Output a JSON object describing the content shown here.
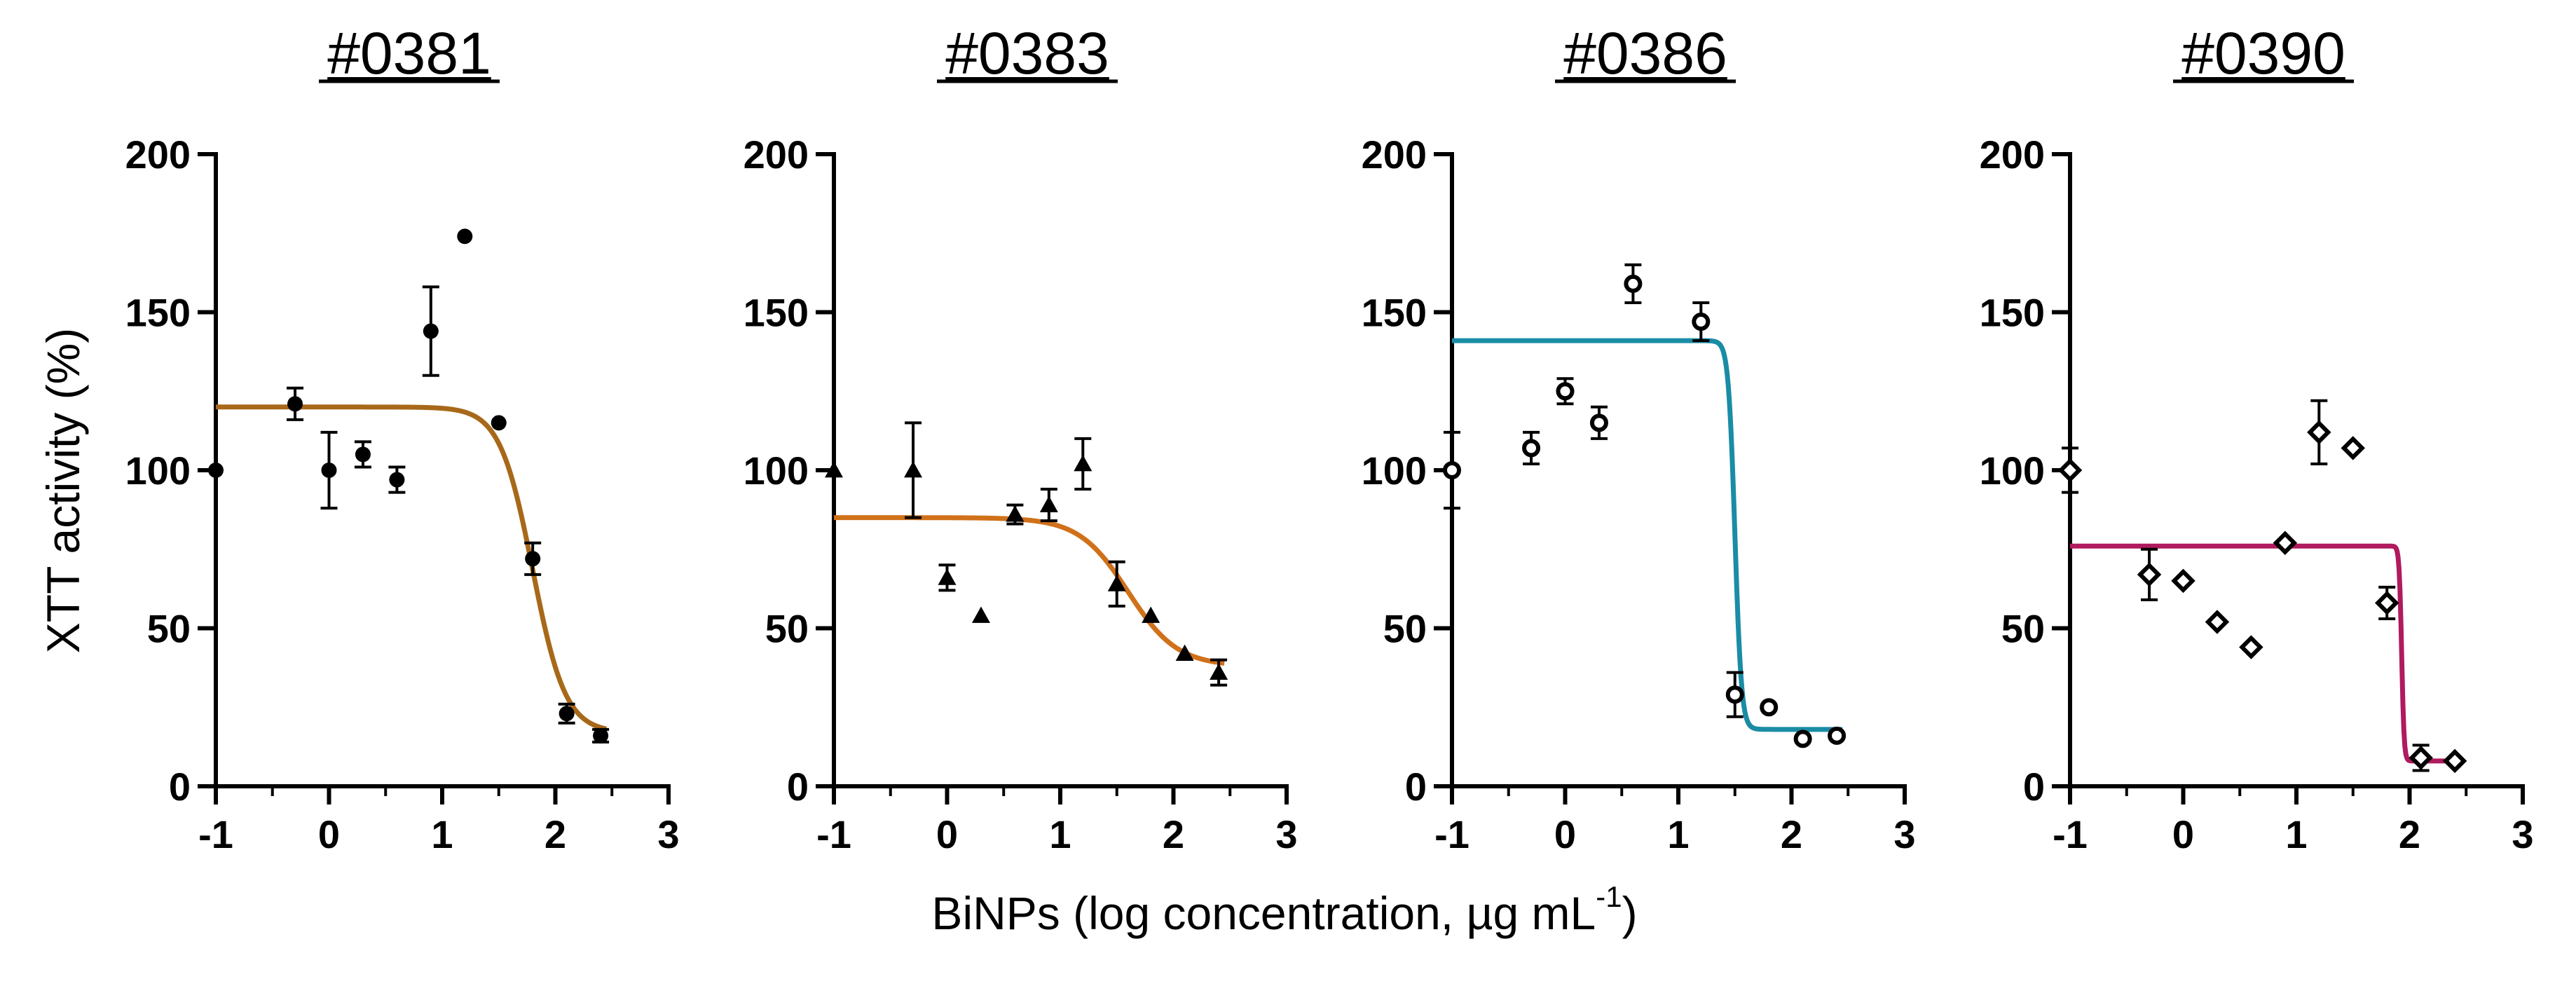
{
  "figure": {
    "y_axis_title": "XTT activity (%)",
    "x_axis_title_main": "BiNPs (log concentration, µg mL",
    "x_axis_title_sup": "-1",
    "x_axis_title_end": ")"
  },
  "chart_data": [
    {
      "type": "scatter",
      "title": "#0381",
      "xlabel": "BiNPs (log concentration, µg mL-1)",
      "ylabel": "XTT activity (%)",
      "xlim": [
        -1,
        3
      ],
      "ylim": [
        0,
        200
      ],
      "xticks": [
        "-1",
        "0",
        "1",
        "2",
        "3"
      ],
      "yticks": [
        "0",
        "50",
        "100",
        "150",
        "200"
      ],
      "marker": "circle",
      "fit_color": "#A8681A",
      "fit": {
        "top": 120,
        "bottom": 17,
        "logEC50": 1.8,
        "hill": 3.0
      },
      "points": [
        {
          "x": -1.0,
          "y": 100,
          "err": 0
        },
        {
          "x": -0.3,
          "y": 121,
          "err": 5
        },
        {
          "x": 0.0,
          "y": 100,
          "err": 12
        },
        {
          "x": 0.3,
          "y": 105,
          "err": 4
        },
        {
          "x": 0.6,
          "y": 97,
          "err": 4
        },
        {
          "x": 0.9,
          "y": 144,
          "err": 14
        },
        {
          "x": 1.2,
          "y": 174,
          "err": 0
        },
        {
          "x": 1.5,
          "y": 115,
          "err": 0
        },
        {
          "x": 1.8,
          "y": 72,
          "err": 5
        },
        {
          "x": 2.1,
          "y": 23,
          "err": 3
        },
        {
          "x": 2.4,
          "y": 16,
          "err": 2
        }
      ]
    },
    {
      "type": "scatter",
      "title": "#0383",
      "xlabel": "BiNPs (log concentration, µg mL-1)",
      "ylabel": "XTT activity (%)",
      "xlim": [
        -1,
        3
      ],
      "ylim": [
        0,
        200
      ],
      "xticks": [
        "-1",
        "0",
        "1",
        "2",
        "3"
      ],
      "yticks": [
        "0",
        "50",
        "100",
        "150",
        "200"
      ],
      "marker": "triangle",
      "fit_color": "#D0711A",
      "fit": {
        "top": 85,
        "bottom": 38,
        "logEC50": 1.6,
        "hill": 2.0
      },
      "points": [
        {
          "x": -1.0,
          "y": 100,
          "err": 0
        },
        {
          "x": -0.3,
          "y": 100,
          "err": 15
        },
        {
          "x": 0.0,
          "y": 66,
          "err": 4
        },
        {
          "x": 0.3,
          "y": 54,
          "err": 0
        },
        {
          "x": 0.6,
          "y": 86,
          "err": 3
        },
        {
          "x": 0.9,
          "y": 89,
          "err": 5
        },
        {
          "x": 1.2,
          "y": 102,
          "err": 8
        },
        {
          "x": 1.5,
          "y": 64,
          "err": 7
        },
        {
          "x": 1.8,
          "y": 54,
          "err": 0
        },
        {
          "x": 2.1,
          "y": 42,
          "err": 0
        },
        {
          "x": 2.4,
          "y": 36,
          "err": 4
        }
      ]
    },
    {
      "type": "scatter",
      "title": "#0386",
      "xlabel": "BiNPs (log concentration, µg mL-1)",
      "ylabel": "XTT activity (%)",
      "xlim": [
        -1,
        3
      ],
      "ylim": [
        0,
        200
      ],
      "xticks": [
        "-1",
        "0",
        "1",
        "2",
        "3"
      ],
      "yticks": [
        "0",
        "50",
        "100",
        "150",
        "200"
      ],
      "marker": "open-circle",
      "fit_color": "#1A8CA5",
      "fit": {
        "top": 141,
        "bottom": 18,
        "logEC50": 1.5,
        "hill": 15
      },
      "points": [
        {
          "x": -1.0,
          "y": 100,
          "err": 12
        },
        {
          "x": -0.3,
          "y": 107,
          "err": 5
        },
        {
          "x": 0.0,
          "y": 125,
          "err": 4
        },
        {
          "x": 0.3,
          "y": 115,
          "err": 5
        },
        {
          "x": 0.6,
          "y": 159,
          "err": 6
        },
        {
          "x": 1.2,
          "y": 147,
          "err": 6
        },
        {
          "x": 1.5,
          "y": 29,
          "err": 7
        },
        {
          "x": 1.8,
          "y": 25,
          "err": 0
        },
        {
          "x": 2.1,
          "y": 15,
          "err": 0
        },
        {
          "x": 2.4,
          "y": 16,
          "err": 0
        }
      ]
    },
    {
      "type": "scatter",
      "title": "#0390",
      "xlabel": "BiNPs (log concentration, µg mL-1)",
      "ylabel": "XTT activity (%)",
      "xlim": [
        -1,
        3
      ],
      "ylim": [
        0,
        200
      ],
      "xticks": [
        "-1",
        "0",
        "1",
        "2",
        "3"
      ],
      "yticks": [
        "0",
        "50",
        "100",
        "150",
        "200"
      ],
      "marker": "diamond",
      "fit_color": "#B01A5E",
      "fit": {
        "top": 76,
        "bottom": 8,
        "logEC50": 1.93,
        "hill": 40
      },
      "points": [
        {
          "x": -1.0,
          "y": 100,
          "err": 7
        },
        {
          "x": -0.3,
          "y": 67,
          "err": 8
        },
        {
          "x": 0.0,
          "y": 65,
          "err": 0
        },
        {
          "x": 0.3,
          "y": 52,
          "err": 0
        },
        {
          "x": 0.6,
          "y": 44,
          "err": 0
        },
        {
          "x": 0.9,
          "y": 77,
          "err": 0
        },
        {
          "x": 1.2,
          "y": 112,
          "err": 10
        },
        {
          "x": 1.5,
          "y": 107,
          "err": 0
        },
        {
          "x": 1.8,
          "y": 58,
          "err": 5
        },
        {
          "x": 2.1,
          "y": 9,
          "err": 4
        },
        {
          "x": 2.4,
          "y": 8,
          "err": 0
        }
      ]
    }
  ]
}
